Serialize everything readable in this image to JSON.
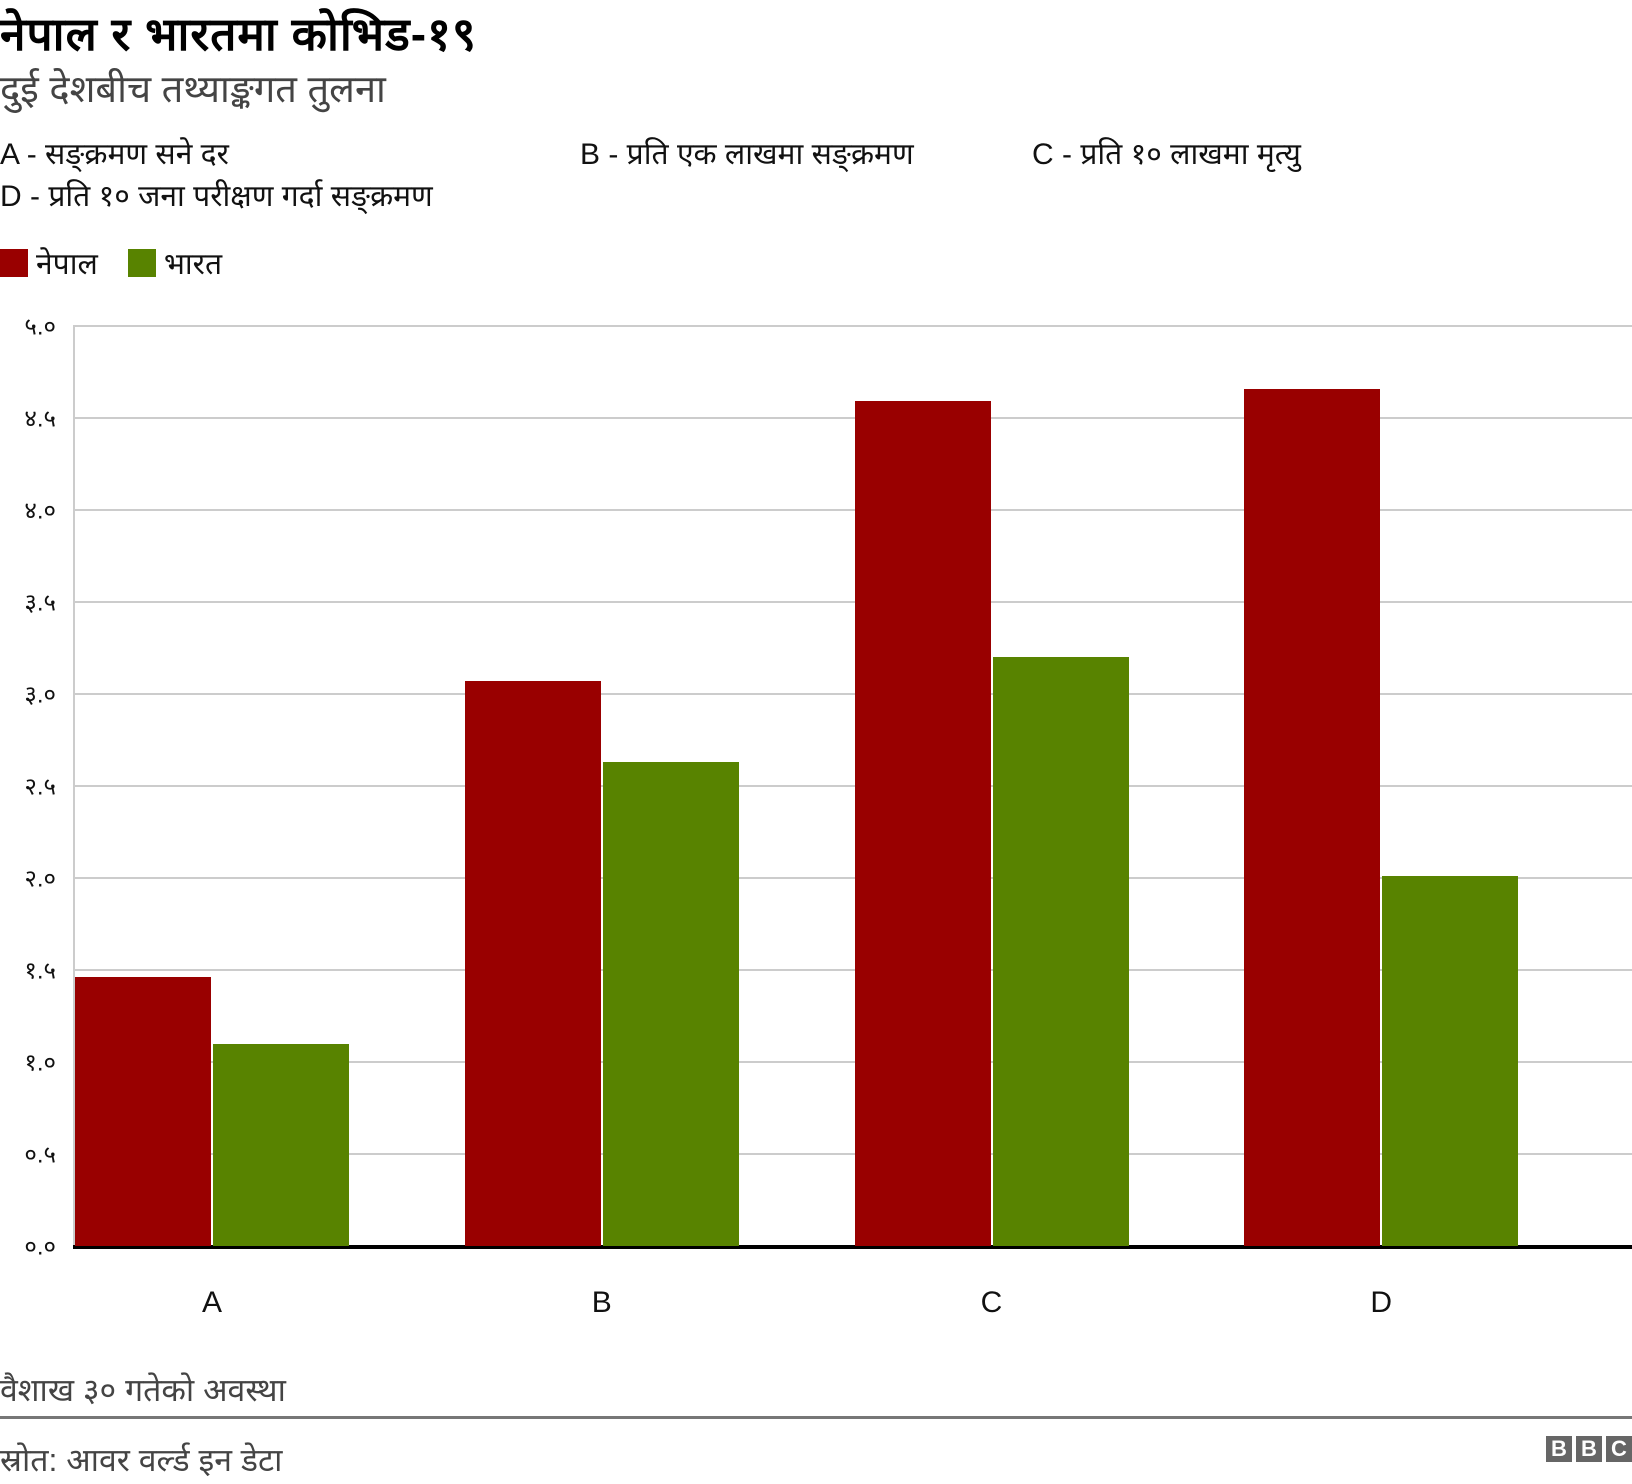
{
  "header": {
    "title": "नेपाल र भारतमा कोभिड-१९",
    "subtitle": "दुई देशबीच तथ्याङ्कगत तुलना"
  },
  "definitions": [
    {
      "label": "A - सङ्क्रमण सने दर"
    },
    {
      "label": "B - प्रति एक लाखमा सङ्क्रमण"
    },
    {
      "label": "C - प्रति १० लाखमा मृत्यु"
    },
    {
      "label": "D - प्रति १० जना परीक्षण गर्दा सङ्क्रमण"
    }
  ],
  "legend": [
    {
      "label": "नेपाल",
      "color": "#990000"
    },
    {
      "label": "भारत",
      "color": "#588300"
    }
  ],
  "footer": {
    "note": "वैशाख ३० गतेको अवस्था",
    "source": "स्रोत: आवर वर्ल्ड इन डेटा",
    "logo": [
      "B",
      "B",
      "C"
    ]
  },
  "chart_data": {
    "type": "bar",
    "title": "नेपाल र भारतमा कोभिड-१९",
    "subtitle": "दुई देशबीच तथ्याङ्कगत तुलना",
    "categories": [
      "A",
      "B",
      "C",
      "D"
    ],
    "series": [
      {
        "name": "नेपाल",
        "color": "#990000",
        "values": [
          1.46,
          3.07,
          4.59,
          4.66
        ]
      },
      {
        "name": "भारत",
        "color": "#588300",
        "values": [
          1.1,
          2.63,
          3.2,
          2.01
        ]
      }
    ],
    "xlabel": "",
    "ylabel": "",
    "ylim": [
      0,
      5.0
    ],
    "yticks": [
      "०.०",
      "०.५",
      "१.०",
      "१.५",
      "२.०",
      "२.५",
      "३.०",
      "३.५",
      "४.०",
      "४.५",
      "५.०"
    ],
    "grid": true,
    "legend_position": "top-left",
    "annotations": [
      "वैशाख ३० गतेको अवस्था"
    ]
  }
}
